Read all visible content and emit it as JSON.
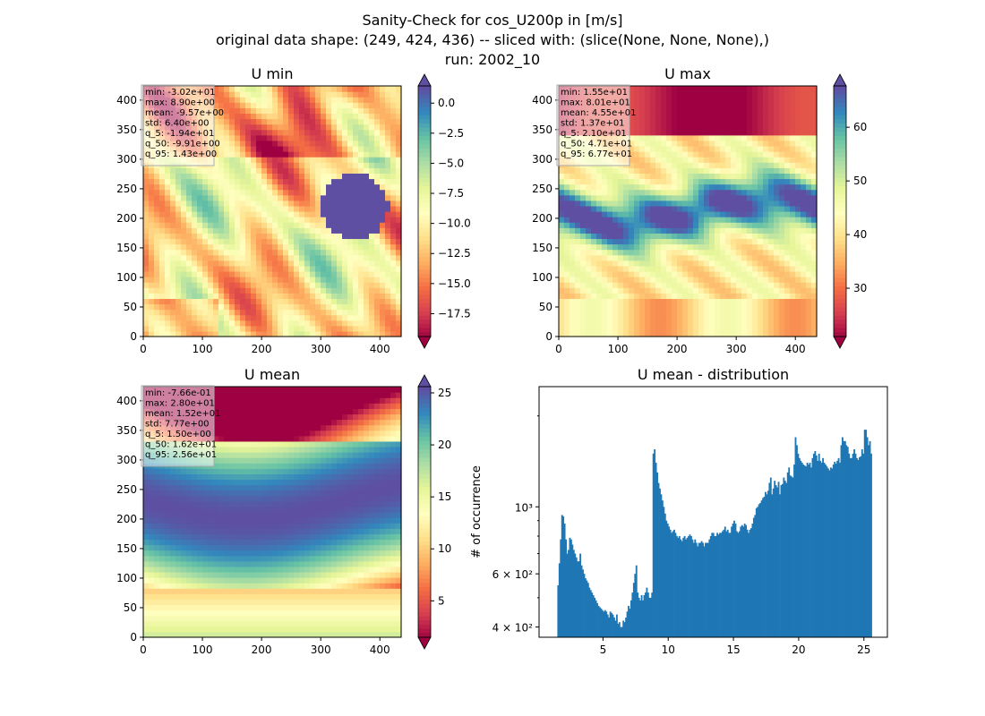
{
  "figure": {
    "title_lines": [
      "Sanity-Check for cos_U200p in [m/s]",
      "original data shape: (249, 424, 436) -- sliced with: (slice(None, None, None),)",
      "run: 2002_10"
    ]
  },
  "chart_data": [
    {
      "type": "heatmap",
      "title": "U min",
      "colormap": "Spectral",
      "xlim": [
        0,
        436
      ],
      "ylim": [
        0,
        424
      ],
      "xticks": [
        0,
        100,
        200,
        300,
        400
      ],
      "yticks": [
        0,
        50,
        100,
        150,
        200,
        250,
        300,
        350,
        400
      ],
      "xtick_labels": [
        "0",
        "100",
        "200",
        "300",
        "400"
      ],
      "ytick_labels": [
        "0",
        "50",
        "100",
        "150",
        "200",
        "250",
        "300",
        "350",
        "400"
      ],
      "colorbar": {
        "range": [
          -19.4,
          1.43
        ],
        "ticks": [
          0.0,
          -2.5,
          -5.0,
          -7.5,
          -10.0,
          -12.5,
          -15.0,
          -17.5
        ],
        "tick_labels": [
          "0.0",
          "−2.5",
          "−5.0",
          "−7.5",
          "−10.0",
          "−12.5",
          "−15.0",
          "−17.5"
        ],
        "extend": "both"
      },
      "stats": [
        "min: -3.02e+01",
        "max: 8.90e+00",
        "mean: -9.57e+00",
        "std: 6.40e+00",
        "q_5: -1.94e+01",
        "q_50: -9.91e+00",
        "q_95: 1.43e+00"
      ]
    },
    {
      "type": "heatmap",
      "title": "U max",
      "colormap": "Spectral",
      "xlim": [
        0,
        436
      ],
      "ylim": [
        0,
        424
      ],
      "xticks": [
        0,
        100,
        200,
        300,
        400
      ],
      "yticks": [
        0,
        50,
        100,
        150,
        200,
        250,
        300,
        350,
        400
      ],
      "xtick_labels": [
        "0",
        "100",
        "200",
        "300",
        "400"
      ],
      "ytick_labels": [
        "0",
        "50",
        "100",
        "150",
        "200",
        "250",
        "300",
        "350",
        "400"
      ],
      "colorbar": {
        "range": [
          21.0,
          67.7
        ],
        "ticks": [
          60,
          50,
          40,
          30
        ],
        "tick_labels": [
          "60",
          "50",
          "40",
          "30"
        ],
        "extend": "both"
      },
      "stats": [
        "min: 1.55e+01",
        "max: 8.01e+01",
        "mean: 4.55e+01",
        "std: 1.37e+01",
        "q_5: 2.10e+01",
        "q_50: 4.71e+01",
        "q_95: 6.77e+01"
      ]
    },
    {
      "type": "heatmap",
      "title": "U mean",
      "colormap": "Spectral",
      "xlim": [
        0,
        436
      ],
      "ylim": [
        0,
        424
      ],
      "xticks": [
        0,
        100,
        200,
        300,
        400
      ],
      "yticks": [
        0,
        50,
        100,
        150,
        200,
        250,
        300,
        350,
        400
      ],
      "xtick_labels": [
        "0",
        "100",
        "200",
        "300",
        "400"
      ],
      "ytick_labels": [
        "0",
        "50",
        "100",
        "150",
        "200",
        "250",
        "300",
        "350",
        "400"
      ],
      "colorbar": {
        "range": [
          1.5,
          25.6
        ],
        "ticks": [
          25,
          20,
          15,
          10,
          5
        ],
        "tick_labels": [
          "25",
          "20",
          "15",
          "10",
          "5"
        ],
        "extend": "both"
      },
      "stats": [
        "min: -7.66e-01",
        "max: 2.80e+01",
        "mean: 1.52e+01",
        "std: 7.77e+00",
        "q_5: 1.50e+00",
        "q_50: 1.62e+01",
        "q_95: 2.56e+01"
      ]
    },
    {
      "type": "bar",
      "title": "U mean - distribution",
      "ylabel": "# of occurrence",
      "xlabel": "",
      "yscale": "log",
      "color": "#1f77b4",
      "xlim": [
        0.1,
        26.8
      ],
      "ylim": [
        370,
        2500
      ],
      "xticks": [
        5,
        10,
        15,
        20,
        25
      ],
      "xtick_labels": [
        "5",
        "10",
        "15",
        "20",
        "25"
      ],
      "yticks_major": [
        400,
        600,
        1000
      ],
      "ytick_labels": [
        "4 × 10²",
        "6 × 10²",
        "10³"
      ],
      "yticks_minor": [
        500,
        700,
        800,
        900,
        2000
      ],
      "bin_range": [
        1.5,
        25.6
      ],
      "bin_count": 241,
      "counts": [
        550,
        650,
        780,
        940,
        930,
        880,
        780,
        700,
        720,
        790,
        780,
        750,
        720,
        700,
        680,
        660,
        660,
        700,
        640,
        620,
        600,
        580,
        570,
        560,
        540,
        530,
        520,
        510,
        500,
        490,
        480,
        470,
        465,
        460,
        455,
        450,
        455,
        450,
        440,
        430,
        450,
        445,
        440,
        430,
        420,
        440,
        410,
        415,
        400,
        400,
        420,
        415,
        430,
        450,
        470,
        460,
        490,
        520,
        560,
        600,
        640,
        520,
        500,
        490,
        510,
        490,
        510,
        520,
        540,
        520,
        500,
        500,
        520,
        1500,
        1550,
        1400,
        1300,
        1200,
        1150,
        1100,
        1050,
        1000,
        950,
        900,
        880,
        860,
        840,
        820,
        830,
        840,
        820,
        800,
        790,
        800,
        780,
        770,
        790,
        800,
        780,
        790,
        800,
        810,
        800,
        780,
        760,
        780,
        760,
        740,
        760,
        760,
        770,
        760,
        740,
        760,
        760,
        760,
        780,
        800,
        820,
        820,
        800,
        800,
        820,
        810,
        820,
        820,
        830,
        840,
        860,
        830,
        840,
        820,
        820,
        860,
        880,
        900,
        880,
        830,
        820,
        830,
        860,
        870,
        860,
        880,
        870,
        840,
        820,
        840,
        850,
        880,
        920,
        940,
        990,
        1000,
        1020,
        1030,
        1050,
        1070,
        1080,
        1120,
        1100,
        1130,
        1200,
        1250,
        1100,
        1150,
        1220,
        1180,
        1160,
        1210,
        1100,
        1180,
        1190,
        1250,
        1220,
        1200,
        1300,
        1350,
        1270,
        1260,
        1250,
        1380,
        1700,
        1600,
        1500,
        1450,
        1420,
        1400,
        1380,
        1370,
        1360,
        1400,
        1380,
        1400,
        1350,
        1450,
        1500,
        1530,
        1480,
        1420,
        1500,
        1420,
        1400,
        1450,
        1400,
        1380,
        1360,
        1340,
        1320,
        1350,
        1340,
        1380,
        1410,
        1390,
        1420,
        1450,
        1400,
        1600,
        1700,
        1650,
        1650,
        1600,
        1580,
        1500,
        1450,
        1450,
        1500,
        1550,
        1500,
        1450,
        1430,
        1460,
        1470,
        1550,
        1500,
        1800,
        1800,
        1700,
        1600,
        1650,
        1500
      ]
    }
  ]
}
